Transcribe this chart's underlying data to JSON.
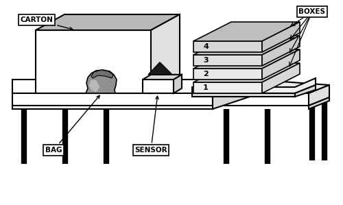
{
  "bg_color": "#ffffff",
  "line_color": "#000000",
  "fill_white": "#ffffff",
  "fill_gray_light": "#c0c0c0",
  "fill_gray_mid": "#909090",
  "fill_gray_dark": "#606060",
  "fill_table_top": "#ffffff",
  "fill_table_side": "#e8e8e8",
  "fill_carton_front": "#ffffff",
  "fill_carton_top": "#b8b8b8",
  "fill_carton_right": "#e0e0e0",
  "fill_box_face": "#e8e8e8",
  "fill_box_top": "#c8c8c8",
  "fill_box_right": "#d8d8d8",
  "fill_bag_body": "#909090",
  "fill_bag_rim": "#707070",
  "fill_sensor_box": "#ffffff",
  "fill_sensor_top": "#d8d8d8",
  "fill_triangle": "#1a1a1a",
  "labels": {
    "carton": "CARTON",
    "bag": "BAG",
    "sensor": "SENSOR",
    "boxes": "BOXES"
  },
  "box_numbers": [
    "1",
    "2",
    "3",
    "4"
  ],
  "figsize": [
    5.0,
    2.99
  ],
  "dpi": 100
}
